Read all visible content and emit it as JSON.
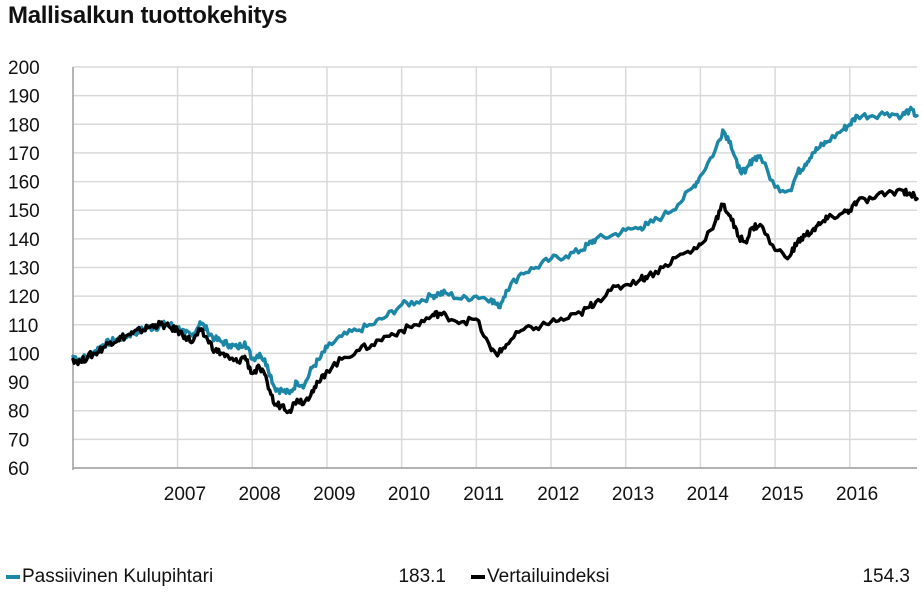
{
  "title": "Mallisalkun tuottokehitys",
  "colors": {
    "passive": "#1b86a6",
    "index": "#000000",
    "grid": "#d9d9d9",
    "axis": "#9e9e9e"
  },
  "legend": [
    {
      "label": "Passiivinen Kulupihtari",
      "value": "183.1",
      "color": "#1b86a6"
    },
    {
      "label": "Vertailuindeksi",
      "value": "154.3",
      "color": "#000000"
    }
  ],
  "chart_data": {
    "type": "line",
    "grid": true,
    "legend_position": "bottom",
    "ylim": [
      60,
      200
    ],
    "yticks": [
      60,
      70,
      80,
      90,
      100,
      110,
      120,
      130,
      140,
      150,
      160,
      170,
      180,
      190,
      200
    ],
    "xlim": [
      2005.6,
      2016.9
    ],
    "year_labels": [
      "2007",
      "2008",
      "2009",
      "2010",
      "2011",
      "2012",
      "2013",
      "2014",
      "2015",
      "2016"
    ],
    "series": [
      {
        "name": "Passiivinen Kulupihtari",
        "color": "#1b86a6",
        "x": [
          2005.6,
          2005.7,
          2005.8,
          2005.9,
          2006.0,
          2006.1,
          2006.2,
          2006.3,
          2006.4,
          2006.5,
          2006.6,
          2006.7,
          2006.8,
          2006.9,
          2007.0,
          2007.1,
          2007.2,
          2007.3,
          2007.4,
          2007.5,
          2007.6,
          2007.7,
          2007.8,
          2007.9,
          2008.0,
          2008.1,
          2008.2,
          2008.3,
          2008.4,
          2008.5,
          2008.6,
          2008.7,
          2008.8,
          2008.9,
          2009.0,
          2009.2,
          2009.4,
          2009.6,
          2009.8,
          2010.0,
          2010.2,
          2010.4,
          2010.5,
          2010.6,
          2010.8,
          2011.0,
          2011.2,
          2011.3,
          2011.4,
          2011.6,
          2011.8,
          2012.0,
          2012.2,
          2012.4,
          2012.5,
          2012.6,
          2012.8,
          2013.0,
          2013.2,
          2013.3,
          2013.5,
          2013.7,
          2013.9,
          2014.0,
          2014.2,
          2014.3,
          2014.4,
          2014.5,
          2014.6,
          2014.7,
          2014.8,
          2015.0,
          2015.2,
          2015.3,
          2015.4,
          2015.5,
          2015.6,
          2015.7,
          2015.9,
          2016.0,
          2016.1,
          2016.3,
          2016.5,
          2016.7,
          2016.8,
          2016.9
        ],
        "values": [
          99,
          98,
          99,
          101,
          103,
          104,
          105,
          106,
          107,
          108,
          109,
          109,
          110,
          110,
          109,
          107,
          106,
          111,
          108,
          105,
          104,
          103,
          102,
          104,
          98,
          100,
          96,
          88,
          87,
          86,
          90,
          89,
          95,
          98,
          102,
          106,
          108,
          110,
          113,
          117,
          118,
          120,
          121,
          121,
          119,
          120,
          119,
          116,
          122,
          128,
          130,
          133,
          134,
          136,
          138,
          140,
          141,
          143,
          144,
          145,
          148,
          152,
          158,
          162,
          171,
          178,
          174,
          165,
          163,
          168,
          169,
          158,
          157,
          163,
          166,
          170,
          172,
          174,
          178,
          180,
          183,
          183,
          184,
          183,
          185,
          183
        ]
      },
      {
        "name": "Vertailuindeksi",
        "color": "#000000",
        "x": [
          2005.6,
          2005.7,
          2005.8,
          2005.9,
          2006.0,
          2006.1,
          2006.2,
          2006.3,
          2006.4,
          2006.5,
          2006.6,
          2006.7,
          2006.8,
          2006.9,
          2007.0,
          2007.1,
          2007.2,
          2007.3,
          2007.4,
          2007.5,
          2007.6,
          2007.7,
          2007.8,
          2007.9,
          2008.0,
          2008.1,
          2008.2,
          2008.3,
          2008.4,
          2008.5,
          2008.6,
          2008.7,
          2008.8,
          2008.9,
          2009.0,
          2009.2,
          2009.4,
          2009.6,
          2009.8,
          2010.0,
          2010.2,
          2010.4,
          2010.5,
          2010.6,
          2010.8,
          2011.0,
          2011.2,
          2011.3,
          2011.4,
          2011.6,
          2011.8,
          2012.0,
          2012.2,
          2012.4,
          2012.5,
          2012.6,
          2012.8,
          2013.0,
          2013.2,
          2013.3,
          2013.5,
          2013.7,
          2013.9,
          2014.0,
          2014.2,
          2014.3,
          2014.4,
          2014.5,
          2014.6,
          2014.7,
          2014.8,
          2015.0,
          2015.2,
          2015.3,
          2015.4,
          2015.5,
          2015.6,
          2015.7,
          2015.9,
          2016.0,
          2016.1,
          2016.3,
          2016.5,
          2016.7,
          2016.8,
          2016.9
        ],
        "values": [
          98,
          97,
          99,
          100,
          102,
          104,
          105,
          106,
          107,
          108,
          109,
          110,
          110,
          109,
          108,
          106,
          104,
          108,
          105,
          101,
          100,
          98,
          97,
          99,
          93,
          95,
          90,
          82,
          82,
          80,
          84,
          83,
          87,
          90,
          94,
          98,
          101,
          103,
          106,
          108,
          110,
          113,
          114,
          113,
          111,
          112,
          101,
          100,
          103,
          108,
          109,
          111,
          112,
          114,
          116,
          118,
          122,
          124,
          126,
          127,
          130,
          134,
          136,
          138,
          146,
          152,
          148,
          141,
          139,
          144,
          145,
          136,
          134,
          139,
          141,
          143,
          145,
          147,
          149,
          150,
          153,
          154,
          156,
          157,
          156,
          154
        ]
      }
    ]
  }
}
